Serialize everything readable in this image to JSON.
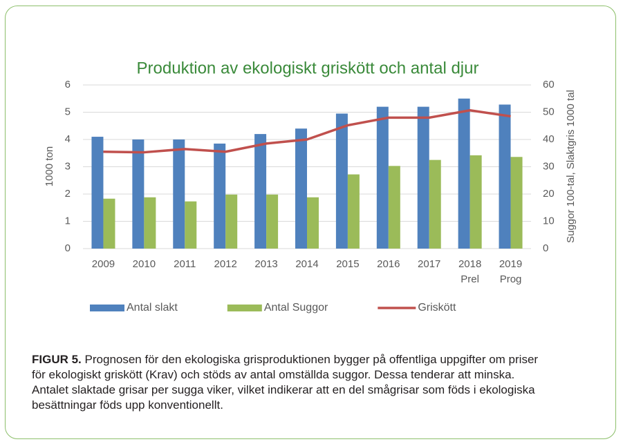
{
  "chart_data": {
    "type": "bar-line",
    "title": "Produktion av ekologiskt griskött och antal djur",
    "ylabel": "1000 ton",
    "y2label": "Suggor 100-tal, Slaktgris 1000 tal",
    "categories": [
      [
        "2009"
      ],
      [
        "2010"
      ],
      [
        "2011"
      ],
      [
        "2012"
      ],
      [
        "2013"
      ],
      [
        "2014"
      ],
      [
        "2015"
      ],
      [
        "2016"
      ],
      [
        "2017"
      ],
      [
        "2018",
        "Prel"
      ],
      [
        "2019",
        "Prog"
      ]
    ],
    "series": [
      {
        "name": "Antal slakt",
        "type": "bar",
        "axis": "y2",
        "color": "#4f81bd",
        "values": [
          41,
          40,
          40,
          38.5,
          42,
          44,
          49.5,
          52,
          52,
          55,
          52.8
        ]
      },
      {
        "name": "Antal Suggor",
        "type": "bar",
        "axis": "y2",
        "color": "#9bbb59",
        "values": [
          18.3,
          18.8,
          17.3,
          19.8,
          19.8,
          18.8,
          27.2,
          30.3,
          32.5,
          34.2,
          33.6
        ]
      },
      {
        "name": "Griskött",
        "type": "line",
        "axis": "y",
        "color": "#c0504d",
        "values": [
          3.55,
          3.53,
          3.65,
          3.55,
          3.85,
          4.0,
          4.52,
          4.8,
          4.8,
          5.07,
          4.85
        ]
      }
    ],
    "ylim": [
      0,
      6
    ],
    "yticks": [
      0,
      1,
      2,
      3,
      4,
      5,
      6
    ],
    "y2lim": [
      0,
      60
    ],
    "y2ticks": [
      0,
      10,
      20,
      30,
      40,
      50,
      60
    ],
    "grid": true,
    "legend": "bottom"
  },
  "caption": {
    "label": "FIGUR 5.",
    "text": "Prognosen för den ekologiska grisproduktionen bygger på offentliga uppgifter om priser för ekologiskt griskött (Krav) och stöds av antal omställda suggor. Dessa tenderar att minska. Antalet slaktade grisar per sugga viker, vilket indikerar att en del smågrisar som föds i ekologiska besättningar föds upp konventionellt."
  }
}
